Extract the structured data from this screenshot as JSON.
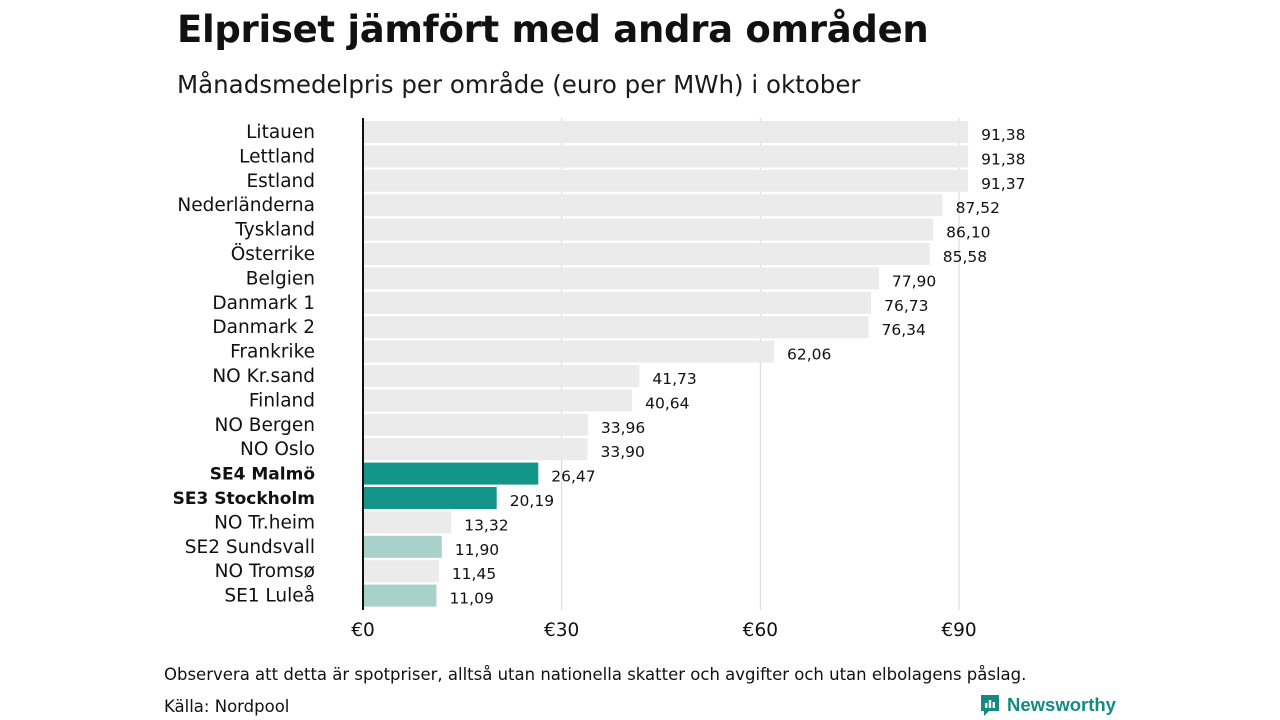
{
  "header": {
    "title": "Elpriset jämfört med andra områden",
    "subtitle": "Månadsmedelpris per område (euro per MWh) i oktober"
  },
  "footer": {
    "note": "Observera att detta är spotpriser, alltså utan nationella skatter och avgifter och utan elbolagens påslag.",
    "source": "Källa: Nordpool",
    "brand": "Newsworthy",
    "brand_icon": "newsworthy-logo-icon"
  },
  "colors": {
    "bar_default": "#ebebeb",
    "bar_highlight": "#14958a",
    "bar_light": "#a8d1ca",
    "grid": "#d6d6d6",
    "axis": "#111111",
    "brand": "#138b83"
  },
  "chart_data": {
    "type": "bar",
    "orientation": "horizontal",
    "title": "Elpriset jämfört med andra områden",
    "subtitle": "Månadsmedelpris per område (euro per MWh) i oktober",
    "categories": [
      "Litauen",
      "Lettland",
      "Estland",
      "Nederländerna",
      "Tyskland",
      "Österrike",
      "Belgien",
      "Danmark 1",
      "Danmark 2",
      "Frankrike",
      "NO Kr.sand",
      "Finland",
      "NO Bergen",
      "NO Oslo",
      "SE4 Malmö",
      "SE3 Stockholm",
      "NO Tr.heim",
      "SE2 Sundsvall",
      "NO Tromsø",
      "SE1 Luleå"
    ],
    "values": [
      91.38,
      91.38,
      91.37,
      87.52,
      86.1,
      85.58,
      77.9,
      76.73,
      76.34,
      62.06,
      41.73,
      40.64,
      33.96,
      33.9,
      26.47,
      20.19,
      13.32,
      11.9,
      11.45,
      11.09
    ],
    "value_labels": [
      "91,38",
      "91,38",
      "91,37",
      "87,52",
      "86,10",
      "85,58",
      "77,90",
      "76,73",
      "76,34",
      "62,06",
      "41,73",
      "40,64",
      "33,96",
      "33,90",
      "26,47",
      "20,19",
      "13,32",
      "11,90",
      "11,45",
      "11,09"
    ],
    "highlight": [
      "default",
      "default",
      "default",
      "default",
      "default",
      "default",
      "default",
      "default",
      "default",
      "default",
      "default",
      "default",
      "default",
      "default",
      "strong",
      "strong",
      "default",
      "light",
      "default",
      "light"
    ],
    "xlim": [
      0,
      92
    ],
    "xticks": [
      0,
      30,
      60,
      90
    ],
    "xtick_labels": [
      "€0",
      "€30",
      "€60",
      "€90"
    ],
    "xlabel": "",
    "ylabel": "",
    "grid": "vertical",
    "legend": "none"
  }
}
